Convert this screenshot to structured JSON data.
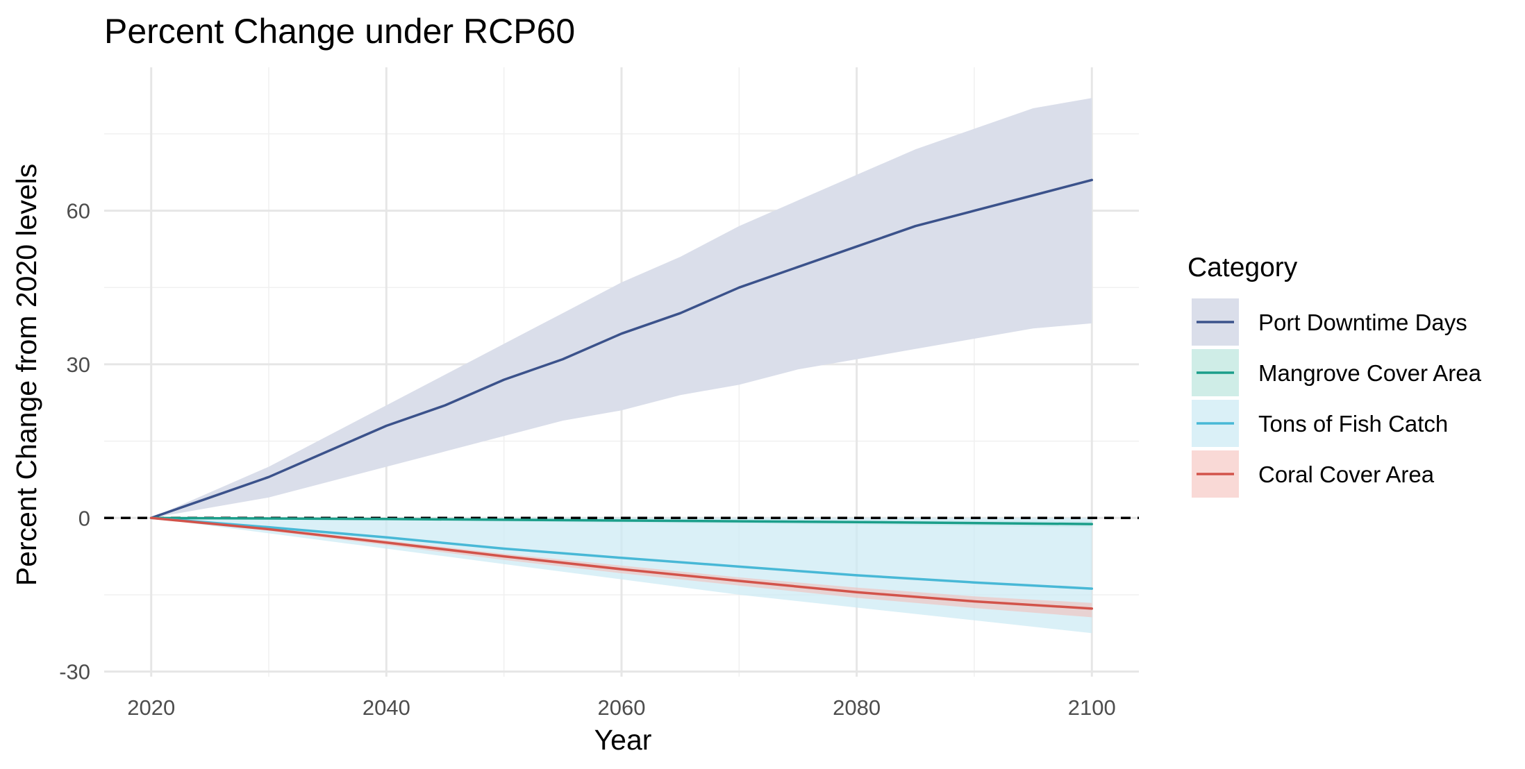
{
  "chart_data": {
    "type": "line",
    "title": "Percent Change under RCP60",
    "xlabel": "Year",
    "ylabel": "Percent Change from 2020 levels",
    "xlim": [
      2016,
      2104
    ],
    "ylim": [
      -31,
      88
    ],
    "x_ticks": [
      2020,
      2040,
      2060,
      2080,
      2100
    ],
    "y_ticks": [
      -30,
      0,
      30,
      60
    ],
    "grid": true,
    "reference_line": {
      "y": 0,
      "style": "dashed",
      "color": "#000000"
    },
    "legend": {
      "title": "Category",
      "position": "right"
    },
    "series": [
      {
        "name": "Port Downtime Days",
        "color": "#3b528b",
        "fill": "#dadeea",
        "fill_opacity": 1,
        "x": [
          2020,
          2025,
          2030,
          2035,
          2040,
          2045,
          2050,
          2055,
          2060,
          2065,
          2070,
          2075,
          2080,
          2085,
          2090,
          2095,
          2100
        ],
        "y": [
          0,
          4,
          8,
          13,
          18,
          22,
          27,
          31,
          36,
          40,
          45,
          49,
          53,
          57,
          60,
          63,
          66
        ],
        "upper": [
          0,
          5,
          10,
          16,
          22,
          28,
          34,
          40,
          46,
          51,
          57,
          62,
          67,
          72,
          76,
          80,
          82
        ],
        "lower": [
          0,
          2,
          4,
          7,
          10,
          13,
          16,
          19,
          21,
          24,
          26,
          29,
          31,
          33,
          35,
          37,
          38
        ]
      },
      {
        "name": "Mangrove Cover Area",
        "color": "#1b9e8a",
        "fill": "#9fdccf",
        "fill_opacity": 0.5,
        "x": [
          2020,
          2040,
          2060,
          2080,
          2100
        ],
        "y": [
          0,
          -0.2,
          -0.5,
          -0.8,
          -1.2
        ],
        "upper": [
          0,
          0,
          0,
          -0.4,
          -0.6
        ],
        "lower": [
          0,
          -0.5,
          -0.9,
          -1.3,
          -1.8
        ]
      },
      {
        "name": "Tons of Fish Catch",
        "color": "#48b8d6",
        "fill": "#cbe9f4",
        "fill_opacity": 0.7,
        "x": [
          2020,
          2030,
          2040,
          2050,
          2060,
          2070,
          2080,
          2090,
          2100
        ],
        "y": [
          0,
          -1.8,
          -3.8,
          -6,
          -7.8,
          -9.5,
          -11.2,
          -12.6,
          -13.8
        ],
        "upper": [
          0,
          0,
          0,
          0,
          0,
          0,
          0,
          0,
          0
        ],
        "lower": [
          0,
          -3,
          -6,
          -9,
          -12,
          -15,
          -17.5,
          -20,
          -22.5
        ]
      },
      {
        "name": "Coral Cover Area",
        "color": "#d2534a",
        "fill": "#f4b9b4",
        "fill_opacity": 0.55,
        "x": [
          2020,
          2030,
          2040,
          2050,
          2060,
          2070,
          2080,
          2090,
          2100
        ],
        "y": [
          0,
          -2.2,
          -4.8,
          -7.5,
          -10,
          -12.3,
          -14.5,
          -16.3,
          -17.7
        ],
        "upper": [
          0,
          -2,
          -4.4,
          -7,
          -9.3,
          -11.6,
          -13.6,
          -15.3,
          -16.6
        ],
        "lower": [
          0,
          -2.5,
          -5.3,
          -8.2,
          -10.8,
          -13.2,
          -15.6,
          -17.6,
          -19.4
        ]
      }
    ]
  }
}
